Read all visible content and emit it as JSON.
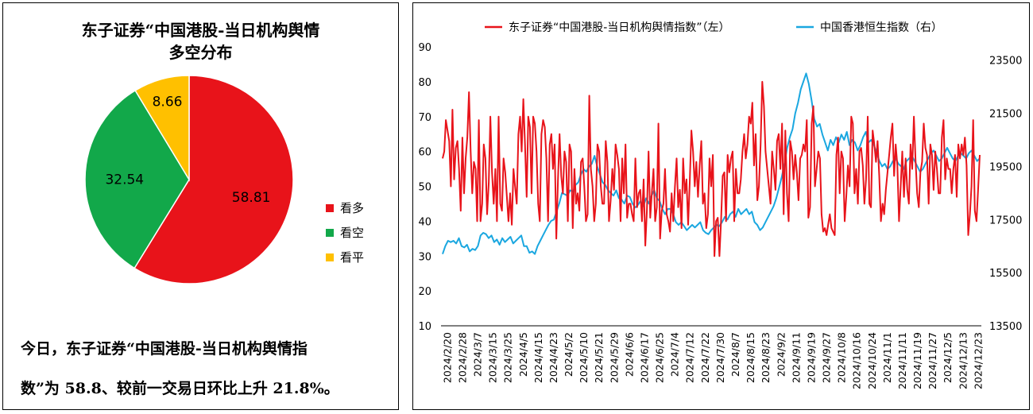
{
  "pie_panel": {
    "title_line1": "东子证券“中国港股-当日机构舆情",
    "title_line2": "多空分布",
    "summary_line1": "今日，东子证券“中国港股-当日机构舆情指",
    "summary_line2": "数”为 58.8、较前一交易日环比上升 21.8%。"
  },
  "line_panel": {
    "legend_left": "东子证券“中国港股-当日机构舆情指数”（左）",
    "legend_right": "中国香港恒生指数（右）"
  },
  "colors": {
    "bullish": "#E8131A",
    "bearish": "#12A84A",
    "neutral": "#FFC000",
    "sentiment_line": "#E8131A",
    "hsi_line": "#1AA7E0"
  },
  "chart_data": [
    {
      "type": "pie",
      "title": "东子证券“中国港股-当日机构舆情 多空分布",
      "labels": [
        "看多",
        "看空",
        "看平"
      ],
      "values": [
        58.81,
        32.54,
        8.66
      ],
      "value_labels": [
        "58.81",
        "32.54",
        "8.66"
      ],
      "legend_position": "right"
    },
    {
      "type": "line",
      "x_ticks": [
        "2024/2/20",
        "2024/2/28",
        "2024/3/7",
        "2024/3/15",
        "2024/3/25",
        "2024/4/5",
        "2024/4/15",
        "2024/4/23",
        "2024/5/2",
        "2024/5/10",
        "2024/5/21",
        "2024/5/29",
        "2024/6/6",
        "2024/6/17",
        "2024/6/25",
        "2024/7/4",
        "2024/7/12",
        "2024/7/22",
        "2024/7/30",
        "2024/8/7",
        "2024/8/15",
        "2024/8/23",
        "2024/9/2",
        "2024/9/11",
        "2024/9/19",
        "2024/9/27",
        "2024/10/8",
        "2024/10/16",
        "2024/10/24",
        "2024/11/1",
        "2024/11/11",
        "2024/11/19",
        "2024/11/27",
        "2024/12/5",
        "2024/12/13",
        "2024/12/23"
      ],
      "y_left": {
        "ticks": [
          "10",
          "20",
          "30",
          "40",
          "50",
          "60",
          "70",
          "80",
          "90"
        ],
        "range": [
          10,
          90
        ]
      },
      "y_right": {
        "ticks": [
          "13500",
          "15500",
          "17500",
          "19500",
          "21500",
          "23500"
        ],
        "range": [
          13500,
          24000
        ]
      },
      "legend_position": "top",
      "series": [
        {
          "name": "东子证券“中国港股-当日机构舆情指数”（左）",
          "axis": "left",
          "values": [
            58,
            60,
            69,
            66,
            63,
            50,
            72,
            52,
            61,
            63,
            55,
            43,
            64,
            48,
            58,
            64,
            77,
            60,
            48,
            57,
            55,
            40,
            69,
            40,
            45,
            62,
            58,
            42,
            51,
            70,
            54,
            45,
            55,
            40,
            70,
            45,
            43,
            58,
            54,
            47,
            40,
            48,
            39,
            55,
            50,
            45,
            65,
            70,
            60,
            75,
            62,
            47,
            70,
            67,
            48,
            70,
            68,
            60,
            45,
            40,
            65,
            69,
            67,
            58,
            40,
            62,
            65,
            55,
            62,
            35,
            52,
            65,
            53,
            48,
            60,
            57,
            40,
            62,
            60,
            38,
            55,
            45,
            48,
            43,
            57,
            58,
            50,
            40,
            42,
            76,
            55,
            50,
            40,
            45,
            62,
            60,
            50,
            45,
            45,
            63,
            57,
            40,
            46,
            55,
            49,
            62,
            59,
            55,
            40,
            58,
            48,
            62,
            41,
            45,
            45,
            42,
            40,
            58,
            44,
            48,
            49,
            40,
            52,
            33,
            43,
            60,
            41,
            48,
            55,
            40,
            44,
            68,
            35,
            43,
            45,
            55,
            42,
            40,
            37,
            48,
            40,
            50,
            58,
            44,
            49,
            38,
            58,
            48,
            52,
            39,
            51,
            66,
            60,
            50,
            57,
            47,
            56,
            63,
            45,
            48,
            38,
            42,
            58,
            50,
            59,
            30,
            40,
            41,
            30,
            40,
            53,
            54,
            40,
            59,
            54,
            58,
            60,
            40,
            55,
            48,
            48,
            52,
            60,
            65,
            58,
            62,
            70,
            68,
            74,
            56,
            65,
            46,
            50,
            62,
            80,
            73,
            60,
            55,
            50,
            45,
            60,
            55,
            49,
            63,
            65,
            55,
            68,
            42,
            66,
            48,
            40,
            63,
            60,
            52,
            59,
            54,
            46,
            58,
            59,
            62,
            60,
            69,
            41,
            44,
            68,
            73,
            50,
            55,
            60,
            58,
            42,
            37,
            38,
            36,
            39,
            42,
            38,
            37,
            36,
            59,
            64,
            48,
            60,
            58,
            40,
            47,
            56,
            50,
            70,
            68,
            48,
            55,
            45,
            60,
            61,
            56,
            45,
            52,
            70,
            45,
            44,
            66,
            62,
            57,
            63,
            53,
            40,
            45,
            42,
            49,
            54,
            59,
            64,
            68,
            53,
            62,
            56,
            40,
            50,
            60,
            47,
            58,
            49,
            45,
            62,
            55,
            70,
            58,
            48,
            44,
            54,
            57,
            68,
            61,
            59,
            45,
            62,
            59,
            49,
            60,
            55,
            48,
            48,
            64,
            69,
            52,
            58,
            55,
            55,
            48,
            55,
            59,
            47,
            62,
            58,
            62,
            59,
            64,
            56,
            36,
            42,
            50,
            69,
            43,
            40,
            49,
            59
          ]
        },
        {
          "name": "中国香港恒生指数（右）",
          "axis": "right",
          "values": [
            16200,
            16500,
            16700,
            16650,
            16700,
            16600,
            16800,
            16500,
            16450,
            16550,
            16300,
            16400,
            16350,
            16500,
            16900,
            17000,
            16950,
            16800,
            16900,
            16650,
            16750,
            16550,
            16800,
            16650,
            16750,
            16850,
            16600,
            16700,
            16800,
            16900,
            16500,
            16500,
            16250,
            16300,
            16200,
            16500,
            16700,
            16900,
            17100,
            17300,
            17450,
            17500,
            17800,
            18100,
            18500,
            18450,
            18400,
            18600,
            18550,
            18800,
            18900,
            19200,
            19400,
            19300,
            19500,
            19600,
            19900,
            19500,
            19200,
            18900,
            18800,
            18600,
            18500,
            18400,
            18600,
            18300,
            18250,
            18100,
            18400,
            18350,
            18100,
            17950,
            18050,
            18200,
            18000,
            18300,
            18100,
            18400,
            18600,
            18300,
            18200,
            17900,
            17700,
            17900,
            17900,
            17700,
            17400,
            17300,
            17400,
            17250,
            17100,
            17200,
            17300,
            17200,
            17300,
            17400,
            17100,
            17000,
            16950,
            17100,
            17200,
            17300,
            17250,
            17400,
            17600,
            17500,
            17700,
            17800,
            17600,
            17900,
            17700,
            17800,
            17900,
            17700,
            17800,
            17400,
            17300,
            17100,
            17200,
            17400,
            17600,
            17800,
            18000,
            18300,
            18700,
            19100,
            19600,
            20200,
            20600,
            20900,
            21500,
            21900,
            22400,
            22700,
            23000,
            22600,
            22000,
            21300,
            21000,
            21100,
            20700,
            20400,
            20100,
            20500,
            20300,
            20600,
            20400,
            20700,
            20500,
            20800,
            20300,
            20500,
            20400,
            20100,
            20300,
            20600,
            20800,
            20400,
            20500,
            20300,
            20000,
            19700,
            19500,
            19600,
            19400,
            19500,
            19700,
            19800,
            19600,
            19500,
            19400,
            19700,
            19800,
            19900,
            19700,
            19500,
            19300,
            19400,
            19600,
            19800,
            20000,
            20100,
            19900,
            19700,
            19800,
            20000,
            20200,
            20000,
            19800,
            19700,
            19900,
            20000,
            19900,
            19800,
            20000,
            20100,
            19900,
            19700,
            19800
          ]
        }
      ]
    }
  ]
}
